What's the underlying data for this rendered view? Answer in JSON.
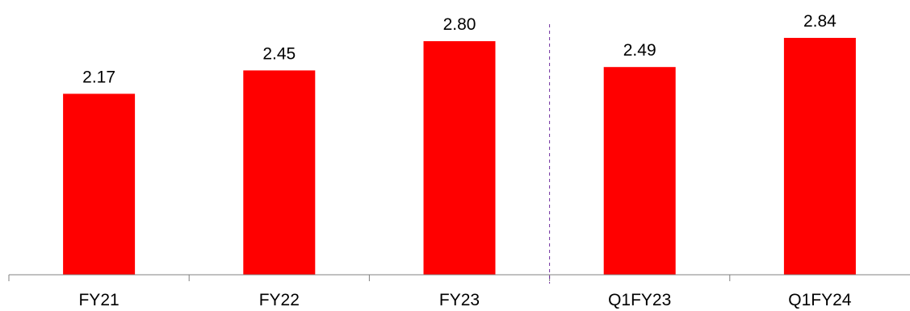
{
  "chart_data": {
    "type": "bar",
    "categories": [
      "FY21",
      "FY22",
      "FY23",
      "Q1FY23",
      "Q1FY24"
    ],
    "values": [
      2.17,
      2.45,
      2.8,
      2.49,
      2.84
    ],
    "value_labels": [
      "2.17",
      "2.45",
      "2.80",
      "2.49",
      "2.84"
    ],
    "title": "",
    "xlabel": "",
    "ylabel": "",
    "ylim": [
      0,
      2.84
    ],
    "grid": false,
    "legend": "none",
    "bar_color": "#FF0000",
    "axis_color": "#808080",
    "separator": {
      "after_category_index": 2,
      "style": "dashed",
      "color": "#7030A0"
    }
  }
}
